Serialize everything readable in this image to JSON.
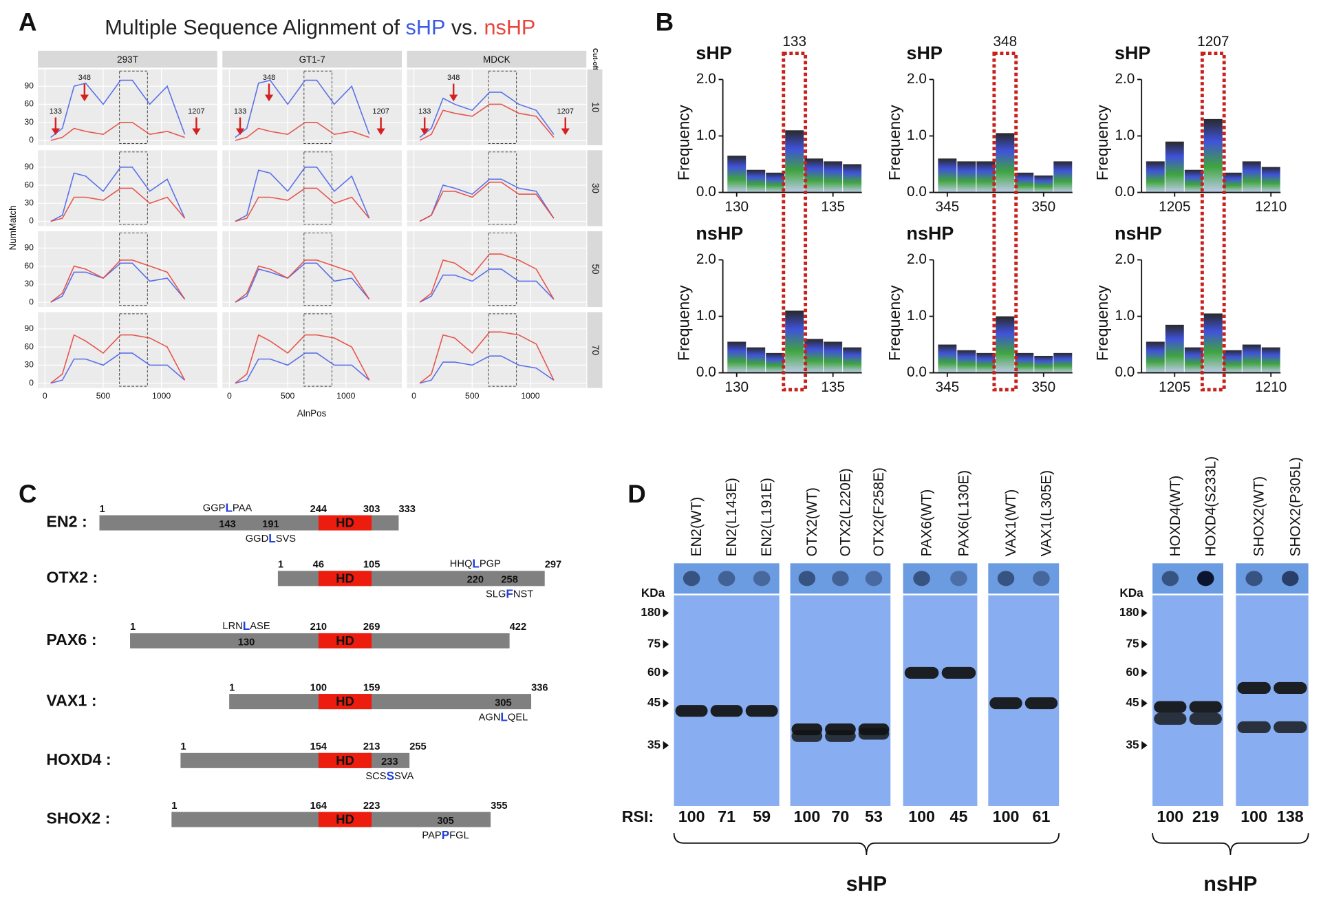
{
  "panel_labels": [
    "A",
    "B",
    "C",
    "D"
  ],
  "panel_a": {
    "title": [
      "Multiple Sequence Alignment of ",
      "sHP",
      " vs. ",
      "nsHP"
    ],
    "title_colors": [
      "#222222",
      "#3b5be0",
      "#222222",
      "#e8453c"
    ],
    "columns": [
      "293T",
      "GT1-7",
      "MDCK"
    ],
    "strip_label": "Cut-off",
    "rows": [
      10,
      30,
      50,
      70
    ],
    "x_label": "AlnPos",
    "y_label": "NumMatch",
    "xlim": [
      -60,
      1480
    ],
    "ylim": [
      -8,
      118
    ],
    "xticks": [
      0,
      500,
      1000
    ],
    "yticks": [
      0,
      30,
      60,
      90
    ],
    "grid": true,
    "series_colors": [
      "#4a63e8",
      "#e5453c"
    ],
    "highlight_region": [
      640,
      880
    ],
    "annotations": [
      {
        "text": "133",
        "x": 92
      },
      {
        "text": "348",
        "x": 340
      },
      {
        "text": "1207",
        "x": 1300
      }
    ],
    "x": [
      50,
      150,
      250,
      350,
      500,
      650,
      750,
      900,
      1050,
      1200
    ],
    "facets": [
      [
        [
          5,
          20,
          90,
          95,
          60,
          100,
          100,
          60,
          90,
          10
        ],
        [
          0,
          5,
          20,
          15,
          10,
          30,
          30,
          10,
          15,
          5
        ]
      ],
      [
        [
          5,
          20,
          95,
          100,
          60,
          100,
          100,
          60,
          90,
          10
        ],
        [
          0,
          5,
          20,
          15,
          10,
          30,
          30,
          10,
          15,
          5
        ]
      ],
      [
        [
          5,
          20,
          70,
          60,
          50,
          80,
          80,
          60,
          50,
          10
        ],
        [
          0,
          10,
          50,
          45,
          40,
          60,
          60,
          45,
          40,
          5
        ]
      ],
      [
        [
          0,
          10,
          80,
          75,
          50,
          90,
          90,
          50,
          70,
          5
        ],
        [
          0,
          5,
          40,
          40,
          35,
          55,
          55,
          30,
          40,
          5
        ]
      ],
      [
        [
          0,
          10,
          85,
          80,
          50,
          90,
          90,
          50,
          75,
          5
        ],
        [
          0,
          5,
          40,
          40,
          35,
          55,
          55,
          30,
          40,
          5
        ]
      ],
      [
        [
          0,
          10,
          60,
          55,
          45,
          70,
          70,
          55,
          50,
          5
        ],
        [
          0,
          10,
          50,
          50,
          40,
          65,
          65,
          45,
          45,
          5
        ]
      ],
      [
        [
          0,
          10,
          50,
          50,
          40,
          65,
          65,
          35,
          40,
          5
        ],
        [
          0,
          15,
          60,
          55,
          40,
          70,
          70,
          60,
          50,
          5
        ]
      ],
      [
        [
          0,
          10,
          55,
          50,
          40,
          65,
          65,
          35,
          40,
          5
        ],
        [
          0,
          15,
          60,
          55,
          40,
          70,
          70,
          60,
          50,
          5
        ]
      ],
      [
        [
          0,
          10,
          45,
          45,
          35,
          55,
          55,
          35,
          35,
          5
        ],
        [
          0,
          15,
          70,
          65,
          45,
          80,
          80,
          70,
          55,
          5
        ]
      ],
      [
        [
          0,
          5,
          40,
          40,
          30,
          50,
          50,
          30,
          30,
          5
        ],
        [
          0,
          15,
          80,
          70,
          50,
          80,
          80,
          75,
          60,
          5
        ]
      ],
      [
        [
          0,
          5,
          40,
          40,
          30,
          50,
          50,
          30,
          30,
          5
        ],
        [
          0,
          15,
          80,
          70,
          50,
          80,
          80,
          75,
          60,
          5
        ]
      ],
      [
        [
          0,
          5,
          35,
          35,
          30,
          45,
          45,
          30,
          25,
          5
        ],
        [
          0,
          15,
          80,
          75,
          50,
          85,
          85,
          80,
          65,
          5
        ]
      ]
    ]
  },
  "panel_b": {
    "y_label": "Frequency",
    "ylim": [
      0,
      2
    ],
    "yticks": [
      {
        "value": 0,
        "label": "0.0"
      },
      {
        "value": 1,
        "label": "1.0"
      },
      {
        "value": 2,
        "label": "2.0"
      }
    ],
    "sites": [
      {
        "position": 133,
        "xlim": [
          129.5,
          136.5
        ],
        "xticks": [
          130,
          135
        ],
        "logos": [
          {
            "label": "sHP",
            "positions": [
              130,
              131,
              132,
              133,
              134,
              135,
              136
            ],
            "heights": [
              0.65,
              0.4,
              0.35,
              1.1,
              0.6,
              0.55,
              0.5
            ]
          },
          {
            "label": "nsHP",
            "positions": [
              130,
              131,
              132,
              133,
              134,
              135,
              136
            ],
            "heights": [
              0.55,
              0.45,
              0.35,
              1.1,
              0.6,
              0.55,
              0.45
            ]
          }
        ]
      },
      {
        "position": 348,
        "xlim": [
          344.5,
          351.5
        ],
        "xticks": [
          345,
          350
        ],
        "logos": [
          {
            "label": "sHP",
            "positions": [
              345,
              346,
              347,
              348,
              349,
              350,
              351
            ],
            "heights": [
              0.6,
              0.55,
              0.55,
              1.05,
              0.35,
              0.3,
              0.55
            ]
          },
          {
            "label": "nsHP",
            "positions": [
              345,
              346,
              347,
              348,
              349,
              350,
              351
            ],
            "heights": [
              0.5,
              0.4,
              0.35,
              1.0,
              0.35,
              0.3,
              0.35
            ]
          }
        ]
      },
      {
        "position": 1207,
        "xlim": [
          1203.5,
          1210.5
        ],
        "xticks": [
          1205,
          1210
        ],
        "logos": [
          {
            "label": "sHP",
            "positions": [
              1204,
              1205,
              1206,
              1207,
              1208,
              1209,
              1210
            ],
            "heights": [
              0.55,
              0.9,
              0.4,
              1.3,
              0.35,
              0.55,
              0.45
            ]
          },
          {
            "label": "nsHP",
            "positions": [
              1204,
              1205,
              1206,
              1207,
              1208,
              1209,
              1210
            ],
            "heights": [
              0.55,
              0.85,
              0.45,
              1.05,
              0.4,
              0.5,
              0.45
            ]
          }
        ]
      }
    ]
  },
  "panel_c": {
    "hd_label": "HD",
    "proteins": [
      {
        "name": "EN2 :",
        "start": 1,
        "length": 333,
        "hd": [
          244,
          303
        ],
        "sites": [
          {
            "pos": 143,
            "motif": [
              "GGP",
              "L",
              "PAA"
            ],
            "side": "above"
          },
          {
            "pos": 191,
            "motif": [
              "GGD",
              "L",
              "SVS"
            ],
            "side": "below"
          }
        ]
      },
      {
        "name": "OTX2 :",
        "start": 1,
        "length": 297,
        "hd": [
          46,
          105
        ],
        "sites": [
          {
            "pos": 220,
            "motif": [
              "HHQ",
              "L",
              "PGP"
            ],
            "side": "above"
          },
          {
            "pos": 258,
            "motif": [
              "SLG",
              "F",
              "NST"
            ],
            "side": "below"
          }
        ]
      },
      {
        "name": "PAX6 :",
        "start": 1,
        "length": 422,
        "hd": [
          210,
          269
        ],
        "sites": [
          {
            "pos": 130,
            "motif": [
              "LRN",
              "L",
              "ASE"
            ],
            "side": "above"
          }
        ]
      },
      {
        "name": "VAX1 :",
        "start": 1,
        "length": 336,
        "hd": [
          100,
          159
        ],
        "sites": [
          {
            "pos": 305,
            "motif": [
              "AGN",
              "L",
              "QEL"
            ],
            "side": "below"
          }
        ]
      },
      {
        "name": "HOXD4 :",
        "start": 1,
        "length": 255,
        "hd": [
          154,
          213
        ],
        "sites": [
          {
            "pos": 233,
            "motif": [
              "SCS",
              "S",
              "SVA"
            ],
            "side": "below"
          }
        ]
      },
      {
        "name": "SHOX2 :",
        "start": 1,
        "length": 355,
        "hd": [
          164,
          223
        ],
        "sites": [
          {
            "pos": 305,
            "motif": [
              "PAP",
              "P",
              "FGL"
            ],
            "side": "below"
          }
        ]
      }
    ]
  },
  "panel_d": {
    "kda_label": "KDa",
    "markers": [
      180,
      75,
      60,
      45,
      35
    ],
    "rsi_label": "RSI:",
    "sets": [
      {
        "label": "sHP",
        "groups": [
          [
            {
              "label": "EN2(WT)",
              "rsi": 100,
              "bands": [
                43
              ]
            },
            {
              "label": "EN2(L143E)",
              "rsi": 71,
              "bands": [
                43
              ]
            },
            {
              "label": "EN2(L191E)",
              "rsi": 59,
              "bands": [
                43
              ]
            }
          ],
          [
            {
              "label": "OTX2(WT)",
              "rsi": 100,
              "bands": [
                38.5,
                37
              ]
            },
            {
              "label": "OTX2(L220E)",
              "rsi": 70,
              "bands": [
                38.5,
                37
              ]
            },
            {
              "label": "OTX2(F258E)",
              "rsi": 53,
              "bands": [
                38.5,
                37.5
              ]
            }
          ],
          [
            {
              "label": "PAX6(WT)",
              "rsi": 100,
              "bands": [
                60
              ]
            },
            {
              "label": "PAX6(L130E)",
              "rsi": 45,
              "bands": [
                60
              ]
            }
          ],
          [
            {
              "label": "VAX1(WT)",
              "rsi": 100,
              "bands": [
                45
              ]
            },
            {
              "label": "VAX1(L305E)",
              "rsi": 61,
              "bands": [
                45
              ]
            }
          ]
        ]
      },
      {
        "label": "nsHP",
        "groups": [
          [
            {
              "label": "HOXD4(WT)",
              "rsi": 100,
              "bands": [
                44,
                41
              ]
            },
            {
              "label": "HOXD4(S233L)",
              "rsi": 219,
              "bands": [
                44,
                41
              ]
            }
          ],
          [
            {
              "label": "SHOX2(WT)",
              "rsi": 100,
              "bands": [
                52,
                39
              ]
            },
            {
              "label": "SHOX2(P305L)",
              "rsi": 138,
              "bands": [
                52,
                39
              ]
            }
          ]
        ]
      }
    ]
  }
}
